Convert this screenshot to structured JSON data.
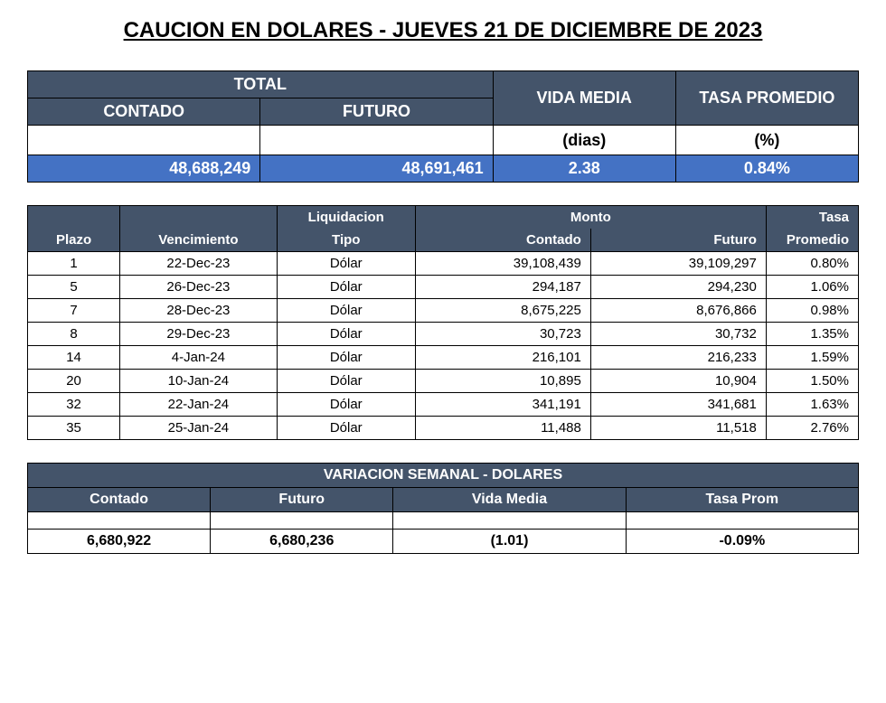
{
  "title": "CAUCION EN DOLARES - JUEVES 21 DE DICIEMBRE DE 2023",
  "colors": {
    "header_dark": "#44546a",
    "header_blue": "#4472c4",
    "text_white": "#ffffff",
    "text_black": "#000000",
    "background": "#ffffff",
    "border": "#000000"
  },
  "summary": {
    "labels": {
      "total": "TOTAL",
      "contado": "CONTADO",
      "futuro": "FUTURO",
      "vida_media": "VIDA MEDIA",
      "tasa_promedio": "TASA PROMEDIO",
      "dias": "(dias)",
      "pct": "(%)"
    },
    "values": {
      "contado": "48,688,249",
      "futuro": "48,691,461",
      "vida_media": "2.38",
      "tasa_promedio": "0.84%"
    }
  },
  "detail": {
    "headers": {
      "plazo": "Plazo",
      "vencimiento": "Vencimiento",
      "liquidacion": "Liquidacion",
      "tipo": "Tipo",
      "monto": "Monto",
      "contado": "Contado",
      "futuro": "Futuro",
      "tasa": "Tasa",
      "promedio": "Promedio"
    },
    "rows": [
      {
        "plazo": "1",
        "vencimiento": "22-Dec-23",
        "tipo": "Dólar",
        "contado": "39,108,439",
        "futuro": "39,109,297",
        "tasa": "0.80%"
      },
      {
        "plazo": "5",
        "vencimiento": "26-Dec-23",
        "tipo": "Dólar",
        "contado": "294,187",
        "futuro": "294,230",
        "tasa": "1.06%"
      },
      {
        "plazo": "7",
        "vencimiento": "28-Dec-23",
        "tipo": "Dólar",
        "contado": "8,675,225",
        "futuro": "8,676,866",
        "tasa": "0.98%"
      },
      {
        "plazo": "8",
        "vencimiento": "29-Dec-23",
        "tipo": "Dólar",
        "contado": "30,723",
        "futuro": "30,732",
        "tasa": "1.35%"
      },
      {
        "plazo": "14",
        "vencimiento": "4-Jan-24",
        "tipo": "Dólar",
        "contado": "216,101",
        "futuro": "216,233",
        "tasa": "1.59%"
      },
      {
        "plazo": "20",
        "vencimiento": "10-Jan-24",
        "tipo": "Dólar",
        "contado": "10,895",
        "futuro": "10,904",
        "tasa": "1.50%"
      },
      {
        "plazo": "32",
        "vencimiento": "22-Jan-24",
        "tipo": "Dólar",
        "contado": "341,191",
        "futuro": "341,681",
        "tasa": "1.63%"
      },
      {
        "plazo": "35",
        "vencimiento": "25-Jan-24",
        "tipo": "Dólar",
        "contado": "11,488",
        "futuro": "11,518",
        "tasa": "2.76%"
      }
    ]
  },
  "variation": {
    "title": "VARIACION SEMANAL - DOLARES",
    "headers": {
      "contado": "Contado",
      "futuro": "Futuro",
      "vida_media": "Vida Media",
      "tasa_prom": "Tasa Prom"
    },
    "values": {
      "contado": "6,680,922",
      "futuro": "6,680,236",
      "vida_media": "(1.01)",
      "tasa_prom": "-0.09%"
    }
  }
}
